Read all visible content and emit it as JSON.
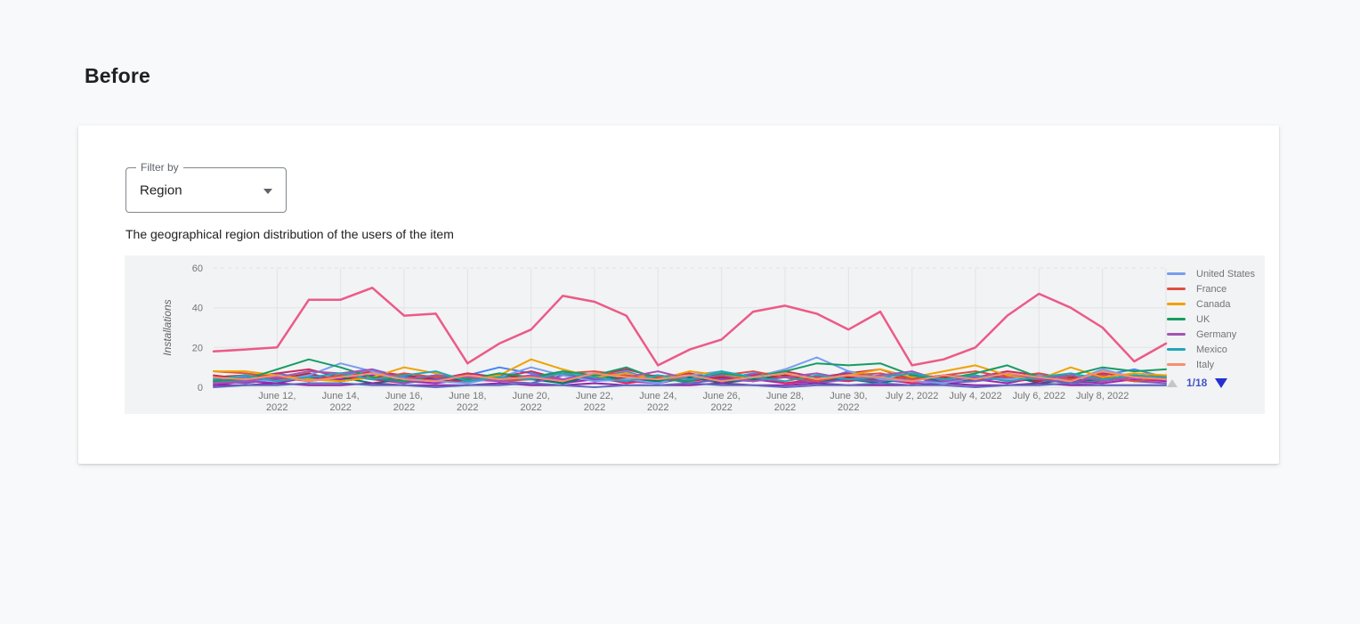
{
  "page": {
    "heading": "Before"
  },
  "filter": {
    "label": "Filter by",
    "value": "Region"
  },
  "description": "The geographical region distribution of the users of the item",
  "chart_data": {
    "type": "line",
    "title": "",
    "xlabel": "",
    "ylabel": "Installations",
    "ylim": [
      0,
      60
    ],
    "y_ticks": [
      0,
      20,
      40,
      60
    ],
    "grid": true,
    "n_points": 31,
    "x_labels": [
      {
        "index": 2,
        "lines": [
          "June 12,",
          "2022"
        ]
      },
      {
        "index": 4,
        "lines": [
          "June 14,",
          "2022"
        ]
      },
      {
        "index": 6,
        "lines": [
          "June 16,",
          "2022"
        ]
      },
      {
        "index": 8,
        "lines": [
          "June 18,",
          "2022"
        ]
      },
      {
        "index": 10,
        "lines": [
          "June 20,",
          "2022"
        ]
      },
      {
        "index": 12,
        "lines": [
          "June 22,",
          "2022"
        ]
      },
      {
        "index": 14,
        "lines": [
          "June 24,",
          "2022"
        ]
      },
      {
        "index": 16,
        "lines": [
          "June 26,",
          "2022"
        ]
      },
      {
        "index": 18,
        "lines": [
          "June 28,",
          "2022"
        ]
      },
      {
        "index": 20,
        "lines": [
          "June 30,",
          "2022"
        ]
      },
      {
        "index": 22,
        "lines": [
          "July 2, 2022"
        ]
      },
      {
        "index": 24,
        "lines": [
          "July 4, 2022"
        ]
      },
      {
        "index": 26,
        "lines": [
          "July 6, 2022"
        ]
      },
      {
        "index": 28,
        "lines": [
          "July 8, 2022"
        ]
      }
    ],
    "highlight_series": {
      "color": "#ec5a87",
      "values": [
        18,
        19,
        20,
        44,
        44,
        50,
        36,
        37,
        12,
        22,
        29,
        46,
        43,
        36,
        11,
        19,
        24,
        38,
        41,
        37,
        29,
        38,
        11,
        14,
        20,
        36,
        47,
        40,
        30,
        13,
        22
      ]
    },
    "series": [
      {
        "name": "United States",
        "color": "#779df0",
        "values": [
          2,
          4,
          3,
          6,
          12,
          8,
          4,
          3,
          2,
          5,
          10,
          6,
          3,
          4,
          2,
          6,
          8,
          5,
          9,
          15,
          8,
          4,
          3,
          2,
          5,
          4,
          6,
          3,
          9,
          5,
          4
        ]
      },
      {
        "name": "France",
        "color": "#dd4f41",
        "values": [
          8,
          7,
          5,
          3,
          6,
          4,
          7,
          5,
          6,
          3,
          4,
          7,
          8,
          6,
          5,
          4,
          6,
          8,
          5,
          3,
          6,
          7,
          4,
          6,
          8,
          5,
          7,
          4,
          6,
          3,
          5
        ]
      },
      {
        "name": "Canada",
        "color": "#f0a100",
        "values": [
          8,
          8,
          6,
          4,
          3,
          5,
          10,
          7,
          4,
          6,
          14,
          9,
          5,
          7,
          4,
          8,
          6,
          5,
          7,
          4,
          6,
          9,
          5,
          8,
          11,
          6,
          4,
          10,
          5,
          7,
          6
        ]
      },
      {
        "name": "UK",
        "color": "#169c63",
        "values": [
          3,
          4,
          9,
          14,
          10,
          5,
          3,
          6,
          4,
          7,
          5,
          8,
          6,
          10,
          4,
          3,
          7,
          5,
          8,
          12,
          11,
          12,
          6,
          4,
          7,
          11,
          5,
          6,
          10,
          8,
          9
        ]
      },
      {
        "name": "Germany",
        "color": "#a455b4",
        "values": [
          2,
          3,
          5,
          8,
          7,
          9,
          4,
          6,
          5,
          3,
          6,
          4,
          7,
          5,
          8,
          4,
          6,
          3,
          5,
          7,
          4,
          6,
          8,
          3,
          5,
          7,
          4,
          6,
          3,
          5,
          4
        ]
      },
      {
        "name": "Mexico",
        "color": "#22a6b8",
        "values": [
          4,
          6,
          3,
          5,
          7,
          4,
          6,
          8,
          3,
          5,
          4,
          7,
          5,
          3,
          6,
          4,
          8,
          5,
          3,
          6,
          4,
          5,
          7,
          4,
          6,
          3,
          5,
          7,
          4,
          6,
          5
        ]
      },
      {
        "name": "Italy",
        "color": "#f58f6f",
        "values": [
          5,
          4,
          6,
          3,
          5,
          7,
          4,
          3,
          6,
          4,
          5,
          3,
          7,
          5,
          4,
          6,
          3,
          5,
          7,
          4,
          6,
          5,
          3,
          6,
          4,
          7,
          5,
          3,
          8,
          5,
          4
        ]
      }
    ],
    "unlabeled_series": [
      {
        "color": "#4285f4",
        "values": [
          3,
          5,
          7,
          4,
          6,
          9,
          5,
          3,
          6,
          10,
          7,
          4,
          5,
          8,
          3,
          6,
          4,
          7,
          5,
          3,
          8,
          5,
          4,
          6,
          3,
          5,
          7,
          4,
          6,
          9,
          5
        ]
      },
      {
        "color": "#c5305d",
        "values": [
          6,
          4,
          7,
          9,
          5,
          8,
          6,
          4,
          7,
          5,
          8,
          4,
          6,
          9,
          5,
          7,
          4,
          6,
          8,
          5,
          7,
          9,
          4,
          6,
          5,
          8,
          6,
          4,
          7,
          5,
          6
        ]
      },
      {
        "color": "#9c27b0",
        "values": [
          1,
          3,
          2,
          5,
          4,
          6,
          3,
          2,
          4,
          3,
          5,
          2,
          4,
          3,
          2,
          5,
          3,
          4,
          2,
          3,
          5,
          4,
          2,
          3,
          4,
          2,
          5,
          3,
          2,
          4,
          3
        ]
      },
      {
        "color": "#e91e63",
        "values": [
          4,
          2,
          5,
          3,
          6,
          4,
          2,
          5,
          3,
          4,
          6,
          3,
          5,
          2,
          4,
          3,
          5,
          6,
          2,
          4,
          3,
          5,
          2,
          4,
          6,
          3,
          4,
          2,
          5,
          3,
          4
        ]
      },
      {
        "color": "#00796b",
        "values": [
          2,
          4,
          6,
          3,
          5,
          2,
          4,
          6,
          3,
          5,
          4,
          2,
          6,
          4,
          3,
          5,
          2,
          4,
          6,
          3,
          4,
          2,
          5,
          3,
          4,
          6,
          2,
          4,
          3,
          5,
          4
        ]
      },
      {
        "color": "#b3282d",
        "values": [
          5,
          6,
          4,
          7,
          3,
          5,
          6,
          4,
          2,
          6,
          5,
          7,
          3,
          5,
          6,
          4,
          5,
          3,
          6,
          4,
          5,
          3,
          6,
          5,
          4,
          6,
          3,
          5,
          4,
          6,
          5
        ]
      },
      {
        "color": "#7e57c2",
        "values": [
          3,
          2,
          4,
          6,
          3,
          5,
          2,
          4,
          5,
          3,
          2,
          6,
          4,
          3,
          5,
          2,
          4,
          3,
          5,
          2,
          4,
          3,
          5,
          2,
          3,
          5,
          4,
          2,
          6,
          3,
          2
        ]
      },
      {
        "color": "#8e24aa",
        "values": [
          1,
          1,
          2,
          1,
          1,
          2,
          1,
          1,
          1,
          2,
          1,
          1,
          2,
          1,
          1,
          1,
          2,
          1,
          1,
          2,
          1,
          1,
          1,
          2,
          1,
          1,
          2,
          1,
          1,
          1,
          1
        ]
      },
      {
        "color": "#5c6bc0",
        "values": [
          0,
          1,
          1,
          2,
          2,
          1,
          1,
          0,
          1,
          1,
          2,
          1,
          0,
          1,
          1,
          2,
          1,
          1,
          0,
          1,
          1,
          2,
          1,
          1,
          0,
          1,
          1,
          2,
          1,
          1,
          1
        ]
      }
    ],
    "legend": {
      "position": "right",
      "pagination": {
        "current": "1/18",
        "prev_enabled": false,
        "next_enabled": true
      }
    },
    "colors": {
      "panel_bg": "#f2f3f4",
      "gridline": "#e1e3e6",
      "axis_text": "#757575",
      "pagination_text": "#4356c9",
      "pagination_next": "#2430d4",
      "pagination_prev": "#c3c7ca"
    }
  }
}
